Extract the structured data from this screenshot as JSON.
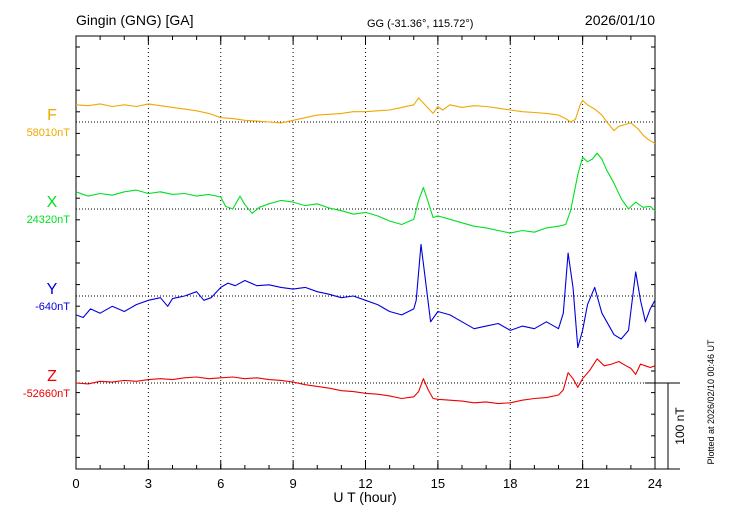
{
  "header": {
    "station": "Gingin (GNG)  [GA]",
    "coords": "GG (-31.36°, 115.72°)",
    "date": "2026/01/10"
  },
  "chart_data": {
    "type": "line",
    "xlabel": "U T (hour)",
    "xlim": [
      0,
      24
    ],
    "x_ticks": [
      "0",
      "3",
      "6",
      "9",
      "12",
      "15",
      "18",
      "21",
      "24"
    ],
    "grid": true,
    "scale_bar": {
      "label": "100 nT",
      "value_nT": 100
    },
    "plotted_note": "Plotted at 2026/02/10 00:46 UT",
    "units": "nT",
    "series": [
      {
        "name": "F",
        "baseline_label": "58010nT",
        "baseline": 58010,
        "color": "#f0a800",
        "points": [
          [
            0,
            20
          ],
          [
            0.5,
            19
          ],
          [
            1,
            21
          ],
          [
            1.5,
            18
          ],
          [
            2,
            20
          ],
          [
            2.5,
            18
          ],
          [
            3,
            21
          ],
          [
            3.5,
            19
          ],
          [
            4,
            17
          ],
          [
            4.5,
            15
          ],
          [
            5,
            13
          ],
          [
            5.5,
            10
          ],
          [
            6,
            5
          ],
          [
            6.5,
            4
          ],
          [
            7,
            2
          ],
          [
            7.5,
            1
          ],
          [
            8,
            0
          ],
          [
            8.5,
            -1
          ],
          [
            9,
            2
          ],
          [
            9.5,
            5
          ],
          [
            10,
            8
          ],
          [
            10.5,
            9
          ],
          [
            11,
            10
          ],
          [
            11.5,
            12
          ],
          [
            12,
            12
          ],
          [
            12.5,
            13
          ],
          [
            13,
            14
          ],
          [
            13.5,
            17
          ],
          [
            14,
            20
          ],
          [
            14.2,
            28
          ],
          [
            14.4,
            22
          ],
          [
            14.6,
            16
          ],
          [
            14.8,
            10
          ],
          [
            15,
            18
          ],
          [
            15.2,
            14
          ],
          [
            15.5,
            20
          ],
          [
            16,
            17
          ],
          [
            16.5,
            19
          ],
          [
            17,
            18
          ],
          [
            17.5,
            16
          ],
          [
            18,
            14
          ],
          [
            18.5,
            12
          ],
          [
            19,
            11
          ],
          [
            19.5,
            10
          ],
          [
            20,
            8
          ],
          [
            20.3,
            4
          ],
          [
            20.5,
            0
          ],
          [
            20.7,
            3
          ],
          [
            20.9,
            20
          ],
          [
            21,
            25
          ],
          [
            21.2,
            20
          ],
          [
            21.5,
            15
          ],
          [
            21.8,
            8
          ],
          [
            22,
            0
          ],
          [
            22.3,
            -10
          ],
          [
            22.5,
            -5
          ],
          [
            23,
            -1
          ],
          [
            23.3,
            -8
          ],
          [
            23.5,
            -15
          ],
          [
            23.7,
            -20
          ],
          [
            24,
            -25
          ]
        ]
      },
      {
        "name": "X",
        "baseline_label": "24320nT",
        "baseline": 24320,
        "color": "#00e020",
        "points": [
          [
            0,
            20
          ],
          [
            0.5,
            15
          ],
          [
            1,
            18
          ],
          [
            1.5,
            16
          ],
          [
            2,
            20
          ],
          [
            2.5,
            22
          ],
          [
            3,
            18
          ],
          [
            3.5,
            20
          ],
          [
            4,
            17
          ],
          [
            4.5,
            18
          ],
          [
            5,
            15
          ],
          [
            5.5,
            17
          ],
          [
            6,
            14
          ],
          [
            6.2,
            3
          ],
          [
            6.5,
            0
          ],
          [
            6.8,
            15
          ],
          [
            7,
            5
          ],
          [
            7.3,
            -5
          ],
          [
            7.6,
            2
          ],
          [
            8,
            6
          ],
          [
            8.5,
            10
          ],
          [
            9,
            8
          ],
          [
            9.5,
            4
          ],
          [
            10,
            6
          ],
          [
            10.5,
            1
          ],
          [
            11,
            -2
          ],
          [
            11.5,
            -6
          ],
          [
            12,
            -4
          ],
          [
            12.5,
            -8
          ],
          [
            13,
            -14
          ],
          [
            13.5,
            -18
          ],
          [
            14,
            -12
          ],
          [
            14.2,
            10
          ],
          [
            14.4,
            25
          ],
          [
            14.6,
            8
          ],
          [
            14.8,
            -10
          ],
          [
            15,
            -8
          ],
          [
            15.5,
            -12
          ],
          [
            16,
            -16
          ],
          [
            16.5,
            -20
          ],
          [
            17,
            -22
          ],
          [
            17.5,
            -25
          ],
          [
            18,
            -28
          ],
          [
            18.5,
            -25
          ],
          [
            19,
            -27
          ],
          [
            19.5,
            -22
          ],
          [
            20,
            -20
          ],
          [
            20.3,
            -18
          ],
          [
            20.5,
            -2
          ],
          [
            20.8,
            40
          ],
          [
            21,
            60
          ],
          [
            21.2,
            55
          ],
          [
            21.4,
            58
          ],
          [
            21.6,
            65
          ],
          [
            21.8,
            58
          ],
          [
            22,
            45
          ],
          [
            22.3,
            30
          ],
          [
            22.6,
            12
          ],
          [
            22.9,
            0
          ],
          [
            23.2,
            8
          ],
          [
            23.5,
            2
          ],
          [
            23.8,
            3
          ],
          [
            24,
            -2
          ]
        ]
      },
      {
        "name": "Y",
        "baseline_label": "-640nT",
        "baseline": -640,
        "color": "#0000dd",
        "points": [
          [
            0,
            -22
          ],
          [
            0.3,
            -25
          ],
          [
            0.6,
            -15
          ],
          [
            1,
            -20
          ],
          [
            1.5,
            -12
          ],
          [
            2,
            -18
          ],
          [
            2.5,
            -10
          ],
          [
            3,
            -5
          ],
          [
            3.5,
            -2
          ],
          [
            3.8,
            -12
          ],
          [
            4,
            -3
          ],
          [
            4.5,
            0
          ],
          [
            5,
            5
          ],
          [
            5.3,
            -5
          ],
          [
            5.6,
            -2
          ],
          [
            6,
            10
          ],
          [
            6.3,
            15
          ],
          [
            6.6,
            12
          ],
          [
            7,
            18
          ],
          [
            7.5,
            12
          ],
          [
            8,
            13
          ],
          [
            8.5,
            10
          ],
          [
            9,
            8
          ],
          [
            9.5,
            10
          ],
          [
            10,
            5
          ],
          [
            10.5,
            2
          ],
          [
            11,
            -2
          ],
          [
            11.5,
            0
          ],
          [
            12,
            -5
          ],
          [
            12.5,
            -10
          ],
          [
            13,
            -18
          ],
          [
            13.5,
            -22
          ],
          [
            14,
            -15
          ],
          [
            14.1,
            -5
          ],
          [
            14.3,
            60
          ],
          [
            14.5,
            15
          ],
          [
            14.7,
            -30
          ],
          [
            15,
            -18
          ],
          [
            15.5,
            -22
          ],
          [
            16,
            -30
          ],
          [
            16.5,
            -38
          ],
          [
            17,
            -35
          ],
          [
            17.5,
            -32
          ],
          [
            18,
            -40
          ],
          [
            18.5,
            -35
          ],
          [
            19,
            -38
          ],
          [
            19.5,
            -30
          ],
          [
            20,
            -38
          ],
          [
            20.2,
            -20
          ],
          [
            20.4,
            50
          ],
          [
            20.6,
            10
          ],
          [
            20.8,
            -60
          ],
          [
            21,
            -40
          ],
          [
            21.2,
            -10
          ],
          [
            21.5,
            10
          ],
          [
            21.8,
            -20
          ],
          [
            22,
            -30
          ],
          [
            22.3,
            -45
          ],
          [
            22.6,
            -50
          ],
          [
            22.9,
            -40
          ],
          [
            23.2,
            28
          ],
          [
            23.4,
            -5
          ],
          [
            23.6,
            -30
          ],
          [
            23.8,
            -15
          ],
          [
            24,
            -5
          ]
        ]
      },
      {
        "name": "Z",
        "baseline_label": "-52660nT",
        "baseline": -52660,
        "color": "#ee0000",
        "points": [
          [
            0,
            0
          ],
          [
            0.5,
            -1
          ],
          [
            1,
            2
          ],
          [
            1.5,
            1
          ],
          [
            2,
            3
          ],
          [
            2.5,
            2
          ],
          [
            3,
            4
          ],
          [
            3.5,
            5
          ],
          [
            4,
            4
          ],
          [
            4.5,
            6
          ],
          [
            5,
            7
          ],
          [
            5.5,
            5
          ],
          [
            6,
            6
          ],
          [
            6.5,
            7
          ],
          [
            7,
            5
          ],
          [
            7.5,
            6
          ],
          [
            8,
            4
          ],
          [
            8.5,
            3
          ],
          [
            9,
            1
          ],
          [
            9.5,
            -2
          ],
          [
            10,
            -4
          ],
          [
            10.5,
            -6
          ],
          [
            11,
            -9
          ],
          [
            11.5,
            -10
          ],
          [
            12,
            -12
          ],
          [
            12.5,
            -13
          ],
          [
            13,
            -15
          ],
          [
            13.5,
            -18
          ],
          [
            14,
            -16
          ],
          [
            14.2,
            -10
          ],
          [
            14.4,
            5
          ],
          [
            14.6,
            -8
          ],
          [
            14.8,
            -18
          ],
          [
            15,
            -19
          ],
          [
            15.5,
            -20
          ],
          [
            16,
            -21
          ],
          [
            16.5,
            -23
          ],
          [
            17,
            -22
          ],
          [
            17.5,
            -24
          ],
          [
            18,
            -23
          ],
          [
            18.5,
            -20
          ],
          [
            19,
            -18
          ],
          [
            19.5,
            -17
          ],
          [
            20,
            -14
          ],
          [
            20.2,
            -8
          ],
          [
            20.4,
            12
          ],
          [
            20.6,
            5
          ],
          [
            20.8,
            -5
          ],
          [
            21,
            5
          ],
          [
            21.3,
            15
          ],
          [
            21.6,
            28
          ],
          [
            21.9,
            20
          ],
          [
            22.2,
            22
          ],
          [
            22.5,
            25
          ],
          [
            22.8,
            20
          ],
          [
            23,
            17
          ],
          [
            23.2,
            10
          ],
          [
            23.4,
            22
          ],
          [
            23.6,
            20
          ],
          [
            23.8,
            18
          ],
          [
            24,
            20
          ]
        ]
      }
    ]
  }
}
